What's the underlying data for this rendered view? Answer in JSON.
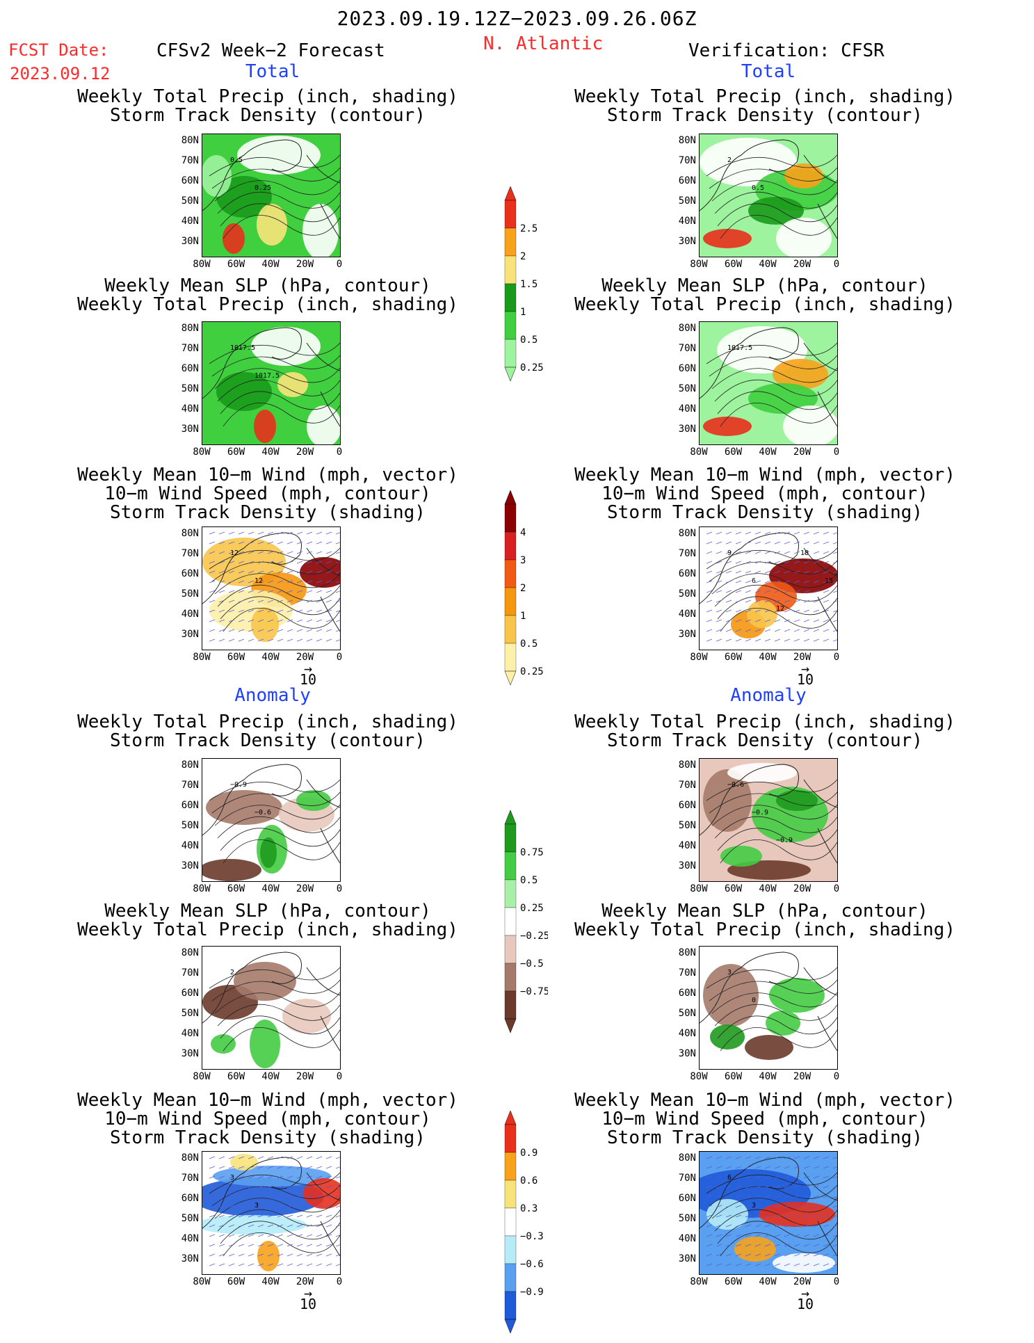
{
  "header": {
    "date_range": "2023.09.19.12Z−2023.09.26.06Z",
    "fcst_label": "FCST Date:",
    "fcst_date": "2023.09.12",
    "model": "CFSv2 Week−2 Forecast",
    "region": "N. Atlantic",
    "verification": "Verification: CFSR"
  },
  "sections": {
    "total": "Total",
    "anomaly": "Anomaly"
  },
  "panel_titles": {
    "precip_track": "Weekly Total Precip (inch, shading)\nStorm Track Density (contour)",
    "slp_precip": "Weekly Mean SLP (hPa, contour)\nWeekly Total Precip (inch, shading)",
    "wind_track": "Weekly Mean 10−m Wind (mph, vector)\n10−m Wind Speed (mph, contour)\nStorm Track Density (shading)"
  },
  "axes": {
    "lat_ticks": [
      "80N",
      "70N",
      "60N",
      "50N",
      "40N",
      "30N"
    ],
    "lon_ticks": [
      "80W",
      "60W",
      "40W",
      "20W",
      "0"
    ],
    "vector_ref": "10"
  },
  "colorbars": {
    "precip_total": {
      "labels": [
        "2.5",
        "2",
        "1.5",
        "1",
        "0.5",
        "0.25"
      ],
      "colors": [
        "#e8301c",
        "#f7a21a",
        "#f8e37a",
        "#1a9a1a",
        "#3fcf3f",
        "#9ef39e"
      ]
    },
    "track_total": {
      "labels": [
        "4",
        "3",
        "2",
        "1",
        "0.5",
        "0.25"
      ],
      "colors": [
        "#8b0000",
        "#d92020",
        "#f05a14",
        "#f5960f",
        "#f8c54a",
        "#fdf0a8"
      ]
    },
    "precip_anom": {
      "labels": [
        "0.75",
        "0.5",
        "0.25",
        "−0.25",
        "−0.5",
        "−0.75"
      ],
      "colors": [
        "#1f9a1f",
        "#44cc44",
        "#a8f0a8",
        "#ffffff",
        "#e8c8bc",
        "#a57a6a",
        "#6b3a2c"
      ]
    },
    "track_anom": {
      "labels": [
        "0.9",
        "0.6",
        "0.3",
        "−0.3",
        "−0.6",
        "−0.9"
      ],
      "colors": [
        "#e8301c",
        "#f7a21a",
        "#f8e37a",
        "#ffffff",
        "#b5ecf8",
        "#5aa0f0",
        "#1f5ad8"
      ]
    }
  },
  "contour_labels": {
    "fc_precip_total": [
      "0.5",
      "0.25"
    ],
    "ver_precip_total": [
      "2",
      "0.5"
    ],
    "fc_slp_total": [
      "1017.5",
      "1017.5"
    ],
    "ver_slp_total": [
      "1017.5"
    ],
    "fc_wind_total": [
      "12",
      "12"
    ],
    "ver_wind_total": [
      "9",
      "6",
      "12",
      "18",
      "15",
      "6"
    ],
    "fc_precip_anom": [
      "−0.9",
      "−0.6"
    ],
    "ver_precip_anom": [
      "−0.6",
      "−0.9",
      "−0.9"
    ],
    "fc_slp_anom": [
      "2"
    ],
    "ver_slp_anom": [
      "3",
      "0"
    ],
    "fc_wind_anom": [
      "3",
      "3"
    ],
    "ver_wind_anom": [
      "6",
      "3"
    ]
  }
}
